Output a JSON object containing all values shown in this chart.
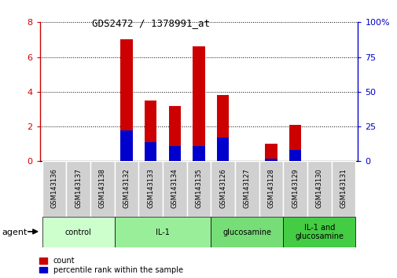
{
  "title": "GDS2472 / 1378991_at",
  "categories": [
    "GSM143136",
    "GSM143137",
    "GSM143138",
    "GSM143132",
    "GSM143133",
    "GSM143134",
    "GSM143135",
    "GSM143126",
    "GSM143127",
    "GSM143128",
    "GSM143129",
    "GSM143130",
    "GSM143131"
  ],
  "count_values": [
    0,
    0,
    0,
    7.0,
    3.5,
    3.2,
    6.6,
    3.8,
    0,
    1.0,
    2.1,
    0,
    0
  ],
  "percentile_values_pct": [
    0,
    0,
    0,
    22,
    14,
    11,
    11,
    17,
    0,
    2,
    8,
    0,
    0
  ],
  "ylim_left": [
    0,
    8
  ],
  "ylim_right": [
    0,
    100
  ],
  "yticks_left": [
    0,
    2,
    4,
    6,
    8
  ],
  "ytick_labels_right": [
    "0",
    "25",
    "50",
    "75",
    "100%"
  ],
  "groups": [
    {
      "label": "control",
      "indices": [
        0,
        1,
        2
      ]
    },
    {
      "label": "IL-1",
      "indices": [
        3,
        4,
        5,
        6
      ]
    },
    {
      "label": "glucosamine",
      "indices": [
        7,
        8,
        9
      ]
    },
    {
      "label": "IL-1 and\nglucosamine",
      "indices": [
        10,
        11,
        12
      ]
    }
  ],
  "group_colors": [
    "#ccffcc",
    "#99ee99",
    "#77dd77",
    "#44cc44"
  ],
  "bar_width": 0.5,
  "count_color": "#cc0000",
  "percentile_color": "#0000cc",
  "agent_label": "agent",
  "legend_count": "count",
  "legend_percentile": "percentile rank within the sample",
  "title_color": "#000000",
  "left_axis_color": "#cc0000",
  "right_axis_color": "#0000cc",
  "grid_color": "#000000"
}
